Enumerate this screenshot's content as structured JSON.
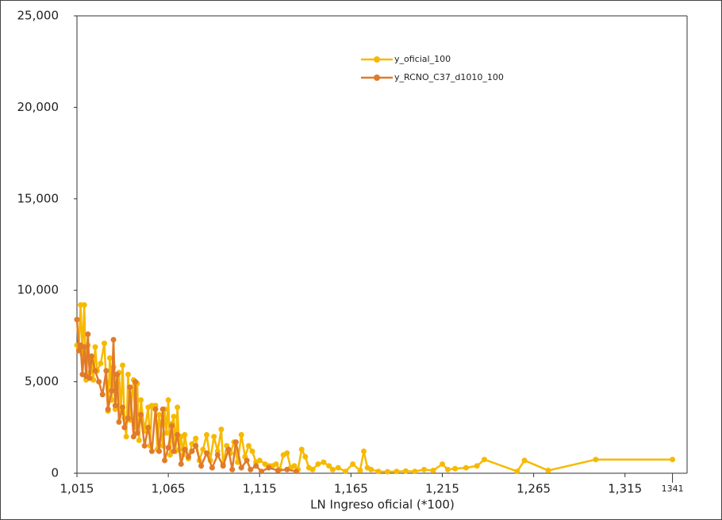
{
  "chart_data": {
    "type": "line",
    "x_label": "LN Ingreso oficial (*100)",
    "xlim": [
      1015,
      1349
    ],
    "ylim": [
      0,
      25000
    ],
    "xticks": [
      {
        "value": 1015,
        "label": "1,015"
      },
      {
        "value": 1065,
        "label": "1,065"
      },
      {
        "value": 1115,
        "label": "1,115"
      },
      {
        "value": 1165,
        "label": "1,165"
      },
      {
        "value": 1215,
        "label": "1,215"
      },
      {
        "value": 1265,
        "label": "1,265"
      },
      {
        "value": 1315,
        "label": "1,315"
      },
      1341
    ],
    "yticks": [
      0,
      {
        "value": 5000,
        "label": "5,000"
      },
      {
        "value": 10000,
        "label": "10,000"
      },
      {
        "value": 15000,
        "label": "15,000"
      },
      {
        "value": 20000,
        "label": "20,000"
      },
      {
        "value": 25000,
        "label": "25,000"
      }
    ],
    "legend": "top-center",
    "series": [
      {
        "name": "y_oficial_100",
        "color": "#f7b900",
        "x": [
          1015,
          1016,
          1017,
          1018,
          1019,
          1020,
          1021,
          1022,
          1023,
          1024,
          1025,
          1026,
          1028,
          1030,
          1031,
          1032,
          1033,
          1034,
          1035,
          1036,
          1037,
          1038,
          1039,
          1040,
          1041,
          1042,
          1043,
          1044,
          1046,
          1047,
          1048,
          1049,
          1050,
          1052,
          1054,
          1055,
          1056,
          1058,
          1059,
          1060,
          1062,
          1063,
          1064,
          1065,
          1066,
          1067,
          1068,
          1069,
          1070,
          1071,
          1072,
          1073,
          1074,
          1076,
          1078,
          1080,
          1082,
          1084,
          1086,
          1088,
          1090,
          1092,
          1094,
          1095,
          1097,
          1099,
          1101,
          1103,
          1105,
          1107,
          1109,
          1111,
          1113,
          1115,
          1118,
          1120,
          1122,
          1124,
          1126,
          1128,
          1130,
          1132,
          1134,
          1136,
          1138,
          1140,
          1142,
          1144,
          1147,
          1150,
          1153,
          1155,
          1158,
          1162,
          1166,
          1170,
          1172,
          1174,
          1176,
          1180,
          1185,
          1190,
          1195,
          1200,
          1205,
          1210,
          1215,
          1218,
          1222,
          1228,
          1234,
          1238,
          1256,
          1260,
          1273,
          1299,
          1341
        ],
        "values": [
          7000,
          6800,
          9200,
          6500,
          9200,
          5100,
          7000,
          5500,
          6200,
          5100,
          6900,
          5600,
          6000,
          7100,
          5000,
          3400,
          6300,
          4000,
          5800,
          3500,
          4800,
          5500,
          3300,
          5900,
          3000,
          2000,
          5400,
          2900,
          5100,
          2500,
          4900,
          1800,
          4000,
          2300,
          3600,
          1500,
          3700,
          3700,
          1300,
          3200,
          1500,
          3500,
          2200,
          4000,
          1000,
          2700,
          3100,
          1200,
          3600,
          1300,
          2000,
          1000,
          2100,
          800,
          1600,
          1900,
          700,
          1300,
          2100,
          700,
          2000,
          1200,
          2400,
          500,
          1500,
          1100,
          1700,
          600,
          2100,
          900,
          1500,
          1200,
          600,
          700,
          500,
          400,
          400,
          500,
          200,
          1000,
          1100,
          300,
          400,
          200,
          1300,
          900,
          300,
          200,
          500,
          600,
          400,
          200,
          300,
          100,
          500,
          150,
          1200,
          300,
          200,
          100,
          80,
          100,
          120,
          100,
          200,
          150,
          500,
          200,
          250,
          300,
          400,
          750,
          100,
          700,
          150,
          750,
          750
        ]
      },
      {
        "name": "y_RCNO_C37_d1010_100",
        "color": "#e07b2a",
        "x": [
          1015,
          1016,
          1017,
          1018,
          1019,
          1020,
          1021,
          1022,
          1023,
          1025,
          1027,
          1029,
          1031,
          1032,
          1034,
          1035,
          1036,
          1037,
          1038,
          1040,
          1041,
          1043,
          1044,
          1046,
          1047,
          1048,
          1050,
          1052,
          1054,
          1056,
          1058,
          1060,
          1062,
          1063,
          1065,
          1067,
          1068,
          1070,
          1072,
          1074,
          1076,
          1078,
          1080,
          1083,
          1086,
          1089,
          1092,
          1095,
          1098,
          1100,
          1102,
          1105,
          1108,
          1110,
          1113,
          1116,
          1120,
          1125,
          1130,
          1135
        ],
        "values": [
          8400,
          6700,
          7000,
          5400,
          6900,
          5300,
          7600,
          5200,
          6400,
          5600,
          5000,
          4300,
          5600,
          3500,
          4500,
          7300,
          3700,
          5400,
          2800,
          3600,
          2500,
          3000,
          4700,
          2000,
          5000,
          2200,
          3200,
          1500,
          2500,
          1200,
          3500,
          1200,
          3500,
          700,
          1400,
          2600,
          1200,
          2100,
          500,
          1300,
          900,
          1200,
          1500,
          400,
          1100,
          300,
          1000,
          400,
          1300,
          200,
          1700,
          300,
          700,
          200,
          400,
          100,
          300,
          150,
          200,
          100
        ]
      }
    ]
  }
}
